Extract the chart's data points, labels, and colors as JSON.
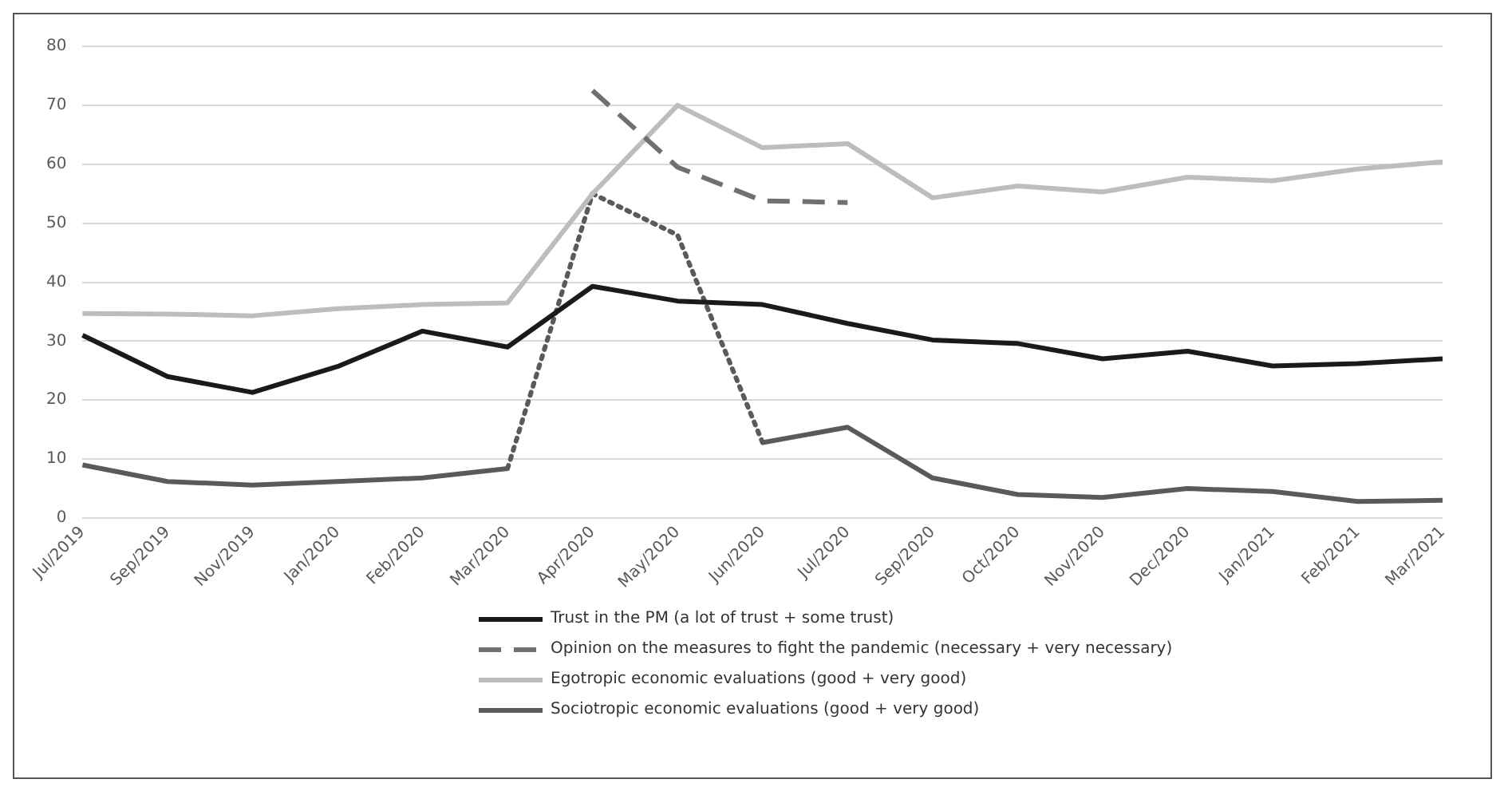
{
  "chart_data": {
    "type": "line",
    "categories": [
      "Jul/2019",
      "Sep/2019",
      "Nov/2019",
      "Jan/2020",
      "Feb/2020",
      "Mar/2020",
      "Apr/2020",
      "May/2020",
      "Jun/2020",
      "Jul/2020",
      "Sep/2020",
      "Oct/2020",
      "Nov/2020",
      "Dec/2020",
      "Jan/2021",
      "Feb/2021",
      "Mar/2021"
    ],
    "ylim": [
      0,
      80
    ],
    "yticks": [
      0,
      10,
      20,
      30,
      40,
      50,
      60,
      70,
      80
    ],
    "grid": "y",
    "legend": "bottom",
    "marker": "none",
    "series": [
      {
        "name": "Trust in the PM (a lot of trust + some trust)",
        "color": "#1a1a1a",
        "line_style": "solid",
        "values": [
          31,
          24,
          21.3,
          25.7,
          31.7,
          29,
          39.3,
          36.8,
          36.2,
          33,
          30.2,
          29.6,
          27,
          28.3,
          25.8,
          26.2,
          27
        ]
      },
      {
        "name": "Opinion on the measures to fight the pandemic (necessary + very necessary)",
        "color": "#707070",
        "line_style": "dashed",
        "values": [
          null,
          null,
          null,
          null,
          null,
          null,
          72.5,
          59.5,
          53.8,
          53.5,
          null,
          null,
          null,
          null,
          null,
          null,
          null
        ]
      },
      {
        "name": "Egotropic economic evaluations (good + very good)",
        "color": "#bdbdbd",
        "line_style": "solid",
        "values": [
          34.7,
          34.6,
          34.3,
          35.5,
          36.2,
          36.5,
          55,
          70,
          62.8,
          63.5,
          54.3,
          56.3,
          55.3,
          57.8,
          57.2,
          59.2,
          60.4
        ]
      },
      {
        "name": "Sociotropic economic evaluations (good + very good)",
        "color": "#5a5a5a",
        "line_style": "solid",
        "values": [
          9,
          6.2,
          5.6,
          6.2,
          6.8,
          8.4,
          null,
          null,
          12.8,
          15.4,
          6.8,
          4,
          3.5,
          5,
          4.5,
          2.8,
          3
        ]
      },
      {
        "color": "#5a5a5a",
        "line_style": "dotted",
        "values": [
          null,
          null,
          null,
          null,
          null,
          8.4,
          55,
          48,
          12.8,
          null,
          null,
          null,
          null,
          null,
          null,
          null,
          null
        ]
      }
    ]
  }
}
